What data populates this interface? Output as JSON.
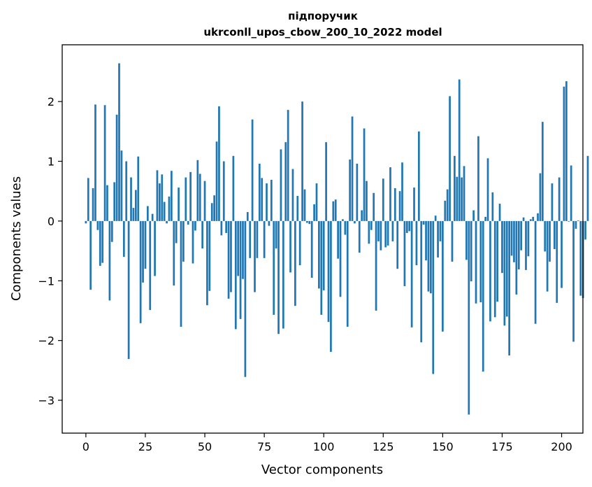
{
  "chart_data": {
    "type": "bar",
    "title_line1": "підпоручик",
    "title_line2": "ukrconll_upos_cbow_200_10_2022 model",
    "xlabel": "Vector components",
    "ylabel": "Components values",
    "xlim": [
      -9.95,
      208.95
    ],
    "ylim": [
      -3.55,
      2.95
    ],
    "x_ticks": [
      0,
      25,
      50,
      75,
      100,
      125,
      150,
      175,
      200
    ],
    "x_tick_labels": [
      "0",
      "25",
      "50",
      "75",
      "100",
      "125",
      "150",
      "175",
      "200"
    ],
    "y_ticks": [
      -3,
      -2,
      -1,
      0,
      1,
      2
    ],
    "y_tick_labels": [
      "−3",
      "−2",
      "−1",
      "0",
      "1",
      "2"
    ],
    "bar_color": "#1f77b4",
    "grid": false,
    "values": [
      -0.04,
      0.72,
      -1.15,
      0.55,
      1.95,
      -0.15,
      -0.75,
      -0.7,
      1.94,
      0.6,
      -1.33,
      -0.35,
      0.65,
      1.78,
      2.64,
      1.18,
      -0.6,
      1.0,
      -2.31,
      0.73,
      0.22,
      0.52,
      1.08,
      -1.71,
      -1.03,
      -0.8,
      0.25,
      -1.49,
      0.12,
      -0.92,
      0.85,
      0.63,
      0.78,
      0.32,
      -0.04,
      0.41,
      0.84,
      -1.08,
      -0.37,
      0.56,
      -1.77,
      -0.68,
      0.73,
      -0.06,
      0.82,
      -0.71,
      -0.16,
      1.02,
      0.79,
      -0.46,
      0.67,
      -1.41,
      -1.17,
      0.3,
      0.43,
      1.33,
      1.92,
      -0.24,
      1.0,
      -0.2,
      -1.3,
      -1.19,
      1.09,
      -1.81,
      -0.92,
      -1.64,
      -0.97,
      -2.61,
      0.15,
      -0.62,
      1.7,
      -1.19,
      -0.62,
      0.96,
      0.72,
      -0.62,
      0.63,
      -0.08,
      0.69,
      -1.57,
      -0.46,
      -1.89,
      1.2,
      -1.8,
      1.32,
      1.86,
      -0.86,
      0.87,
      -1.42,
      0.42,
      -0.74,
      2.0,
      0.53,
      -0.03,
      -0.05,
      -0.95,
      0.28,
      0.63,
      -1.13,
      -1.57,
      -1.16,
      1.32,
      -1.69,
      -2.19,
      0.33,
      0.36,
      -0.63,
      -1.27,
      0.03,
      -0.23,
      -1.77,
      1.03,
      1.75,
      -0.04,
      0.96,
      -0.53,
      0.18,
      1.55,
      0.67,
      -0.38,
      -0.15,
      0.47,
      -1.5,
      -0.34,
      -0.49,
      0.71,
      -0.44,
      -0.41,
      0.9,
      -0.34,
      0.55,
      -0.8,
      0.5,
      0.98,
      -1.09,
      -0.2,
      -0.17,
      -1.78,
      0.56,
      -0.74,
      1.5,
      -2.03,
      -0.06,
      -0.66,
      -1.18,
      -1.21,
      -2.56,
      0.09,
      -0.61,
      -0.34,
      -1.85,
      0.34,
      0.53,
      2.09,
      -0.68,
      1.09,
      0.74,
      2.37,
      0.73,
      0.92,
      -0.65,
      -3.24,
      -1.01,
      0.18,
      -1.38,
      1.42,
      -1.36,
      -2.52,
      0.07,
      1.05,
      -1.68,
      0.48,
      -1.61,
      -1.35,
      0.29,
      -0.87,
      -1.75,
      -1.6,
      -2.25,
      -0.58,
      -0.69,
      -1.23,
      -0.81,
      -0.49,
      0.06,
      -0.82,
      -0.59,
      0.03,
      0.07,
      -1.72,
      0.13,
      0.8,
      1.66,
      -0.51,
      -1.18,
      -0.68,
      0.63,
      -0.47,
      -1.37,
      0.73,
      -1.12,
      2.25,
      2.34,
      -0.01,
      0.93,
      -2.02,
      -0.13,
      0.01,
      -1.25,
      -1.29,
      -0.31,
      1.09
    ]
  }
}
